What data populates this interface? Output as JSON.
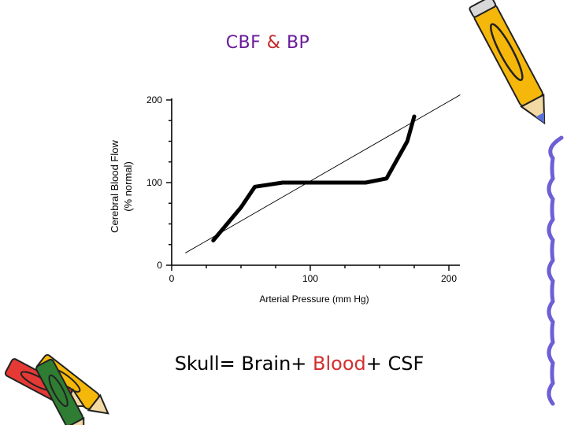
{
  "slide": {
    "title_parts": [
      {
        "text": "CBF ",
        "color": "#6a1b9a"
      },
      {
        "text": "&",
        "color": "#c62828"
      },
      {
        "text": " BP",
        "color": "#6a1b9a"
      }
    ],
    "footer_parts": [
      {
        "text": "Skull= Brain+ ",
        "color": "#000000"
      },
      {
        "text": "Blood",
        "color": "#d32f2f"
      },
      {
        "text": "+ CSF",
        "color": "#000000"
      }
    ]
  },
  "decorations": {
    "pencil_right": {
      "icon": "pencil-icon",
      "body_color": "#f5b70a",
      "tip_color": "#5a6fd6"
    },
    "pencils_left": {
      "icon": "pencils-icon",
      "colors": [
        "#f5b70a",
        "#e53935",
        "#2e7d32"
      ]
    },
    "squiggle_color": "#6d5fd6"
  },
  "chart_data": {
    "type": "line",
    "title": "",
    "xlabel": "Arterial Pressure (mm Hg)",
    "ylabel": "Cerebral Blood Flow (% normal)",
    "xlim": [
      0,
      200
    ],
    "ylim": [
      0,
      200
    ],
    "xticks": [
      0,
      100,
      200
    ],
    "yticks": [
      0,
      100,
      200
    ],
    "grid": false,
    "series": [
      {
        "style": "thick",
        "color": "#000000",
        "x": [
          30,
          50,
          60,
          80,
          100,
          120,
          140,
          155,
          170,
          175
        ],
        "y": [
          30,
          70,
          95,
          100,
          100,
          100,
          100,
          105,
          150,
          180
        ]
      },
      {
        "style": "thin",
        "color": "#000000",
        "x": [
          10,
          208
        ],
        "y": [
          15,
          206
        ]
      }
    ]
  }
}
